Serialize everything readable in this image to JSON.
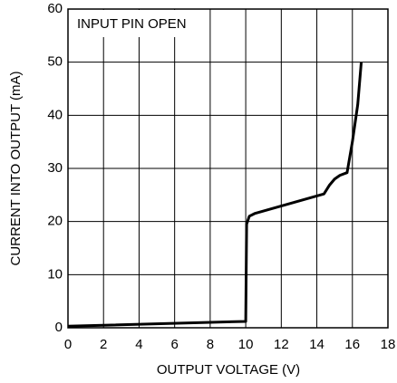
{
  "chart_data": {
    "type": "line",
    "annotation": "INPUT PIN OPEN",
    "xlabel": "OUTPUT VOLTAGE (V)",
    "ylabel": "CURRENT INTO OUTPUT (mA)",
    "x": [
      0,
      10,
      10.05,
      10.2,
      10.5,
      14.4,
      14.7,
      15,
      15.3,
      15.7,
      16,
      16.3,
      16.5
    ],
    "values": [
      0.3,
      1.2,
      19.5,
      21,
      21.5,
      25.2,
      26.8,
      28,
      28.7,
      29.2,
      35,
      42,
      50
    ],
    "color": "#000000",
    "xlim": [
      0,
      18
    ],
    "xticks": [
      0,
      2,
      4,
      6,
      8,
      10,
      12,
      14,
      16,
      18
    ],
    "ylim": [
      0,
      60
    ],
    "yticks": [
      0,
      10,
      20,
      30,
      40,
      50,
      60
    ],
    "grid": true
  }
}
